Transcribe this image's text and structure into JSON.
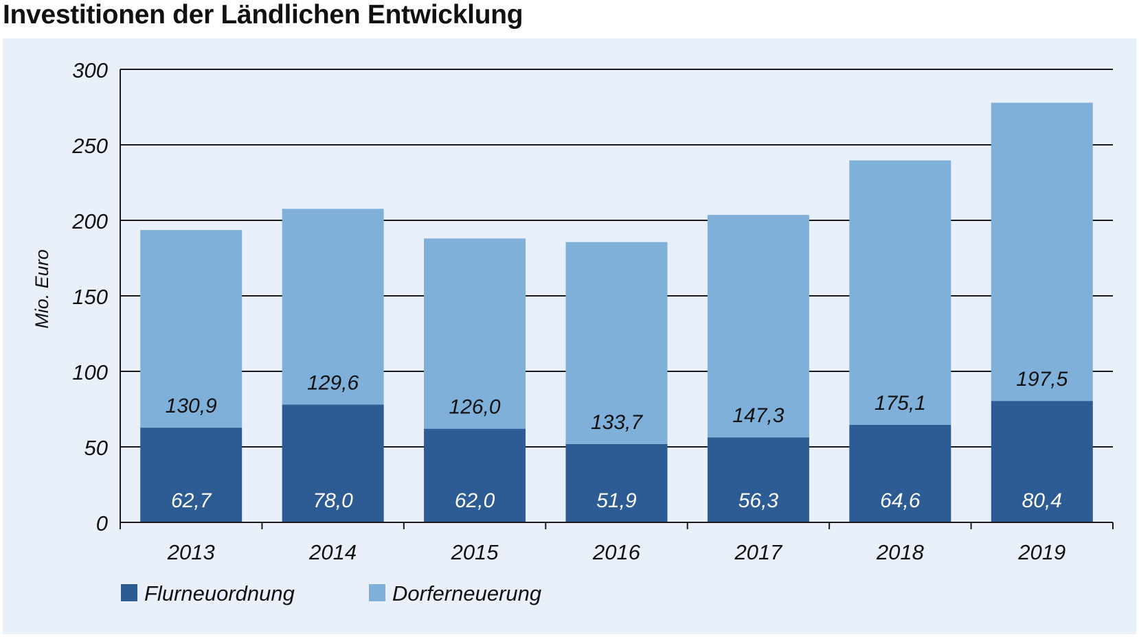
{
  "title": "Investitionen der Ländlichen Entwicklung",
  "chart_data": {
    "type": "bar",
    "stacked": true,
    "title": "Investitionen der Ländlichen Entwicklung",
    "xlabel": "",
    "ylabel": "Mio. Euro",
    "ylim": [
      0,
      300
    ],
    "yticks": [
      0,
      50,
      100,
      150,
      200,
      250,
      300
    ],
    "ytick_labels": [
      "0",
      "50",
      "100",
      "150",
      "200",
      "250",
      "300"
    ],
    "grid": "horizontal",
    "legend_position": "bottom-left",
    "categories": [
      "2013",
      "2014",
      "2015",
      "2016",
      "2017",
      "2018",
      "2019"
    ],
    "series": [
      {
        "name": "Flurneuordnung",
        "color": "#2d5b93",
        "values": [
          62.7,
          78.0,
          62.0,
          51.9,
          56.3,
          64.6,
          80.4
        ],
        "labels": [
          "62,7",
          "78,0",
          "62,0",
          "51,9",
          "56,3",
          "64,6",
          "80,4"
        ]
      },
      {
        "name": "Dorferneuerung",
        "color": "#7fb0d9",
        "values": [
          130.9,
          129.6,
          126.0,
          133.7,
          147.3,
          175.1,
          197.5
        ],
        "labels": [
          "130,9",
          "129,6",
          "126,0",
          "133,7",
          "147,3",
          "175,1",
          "197,5"
        ]
      }
    ]
  }
}
